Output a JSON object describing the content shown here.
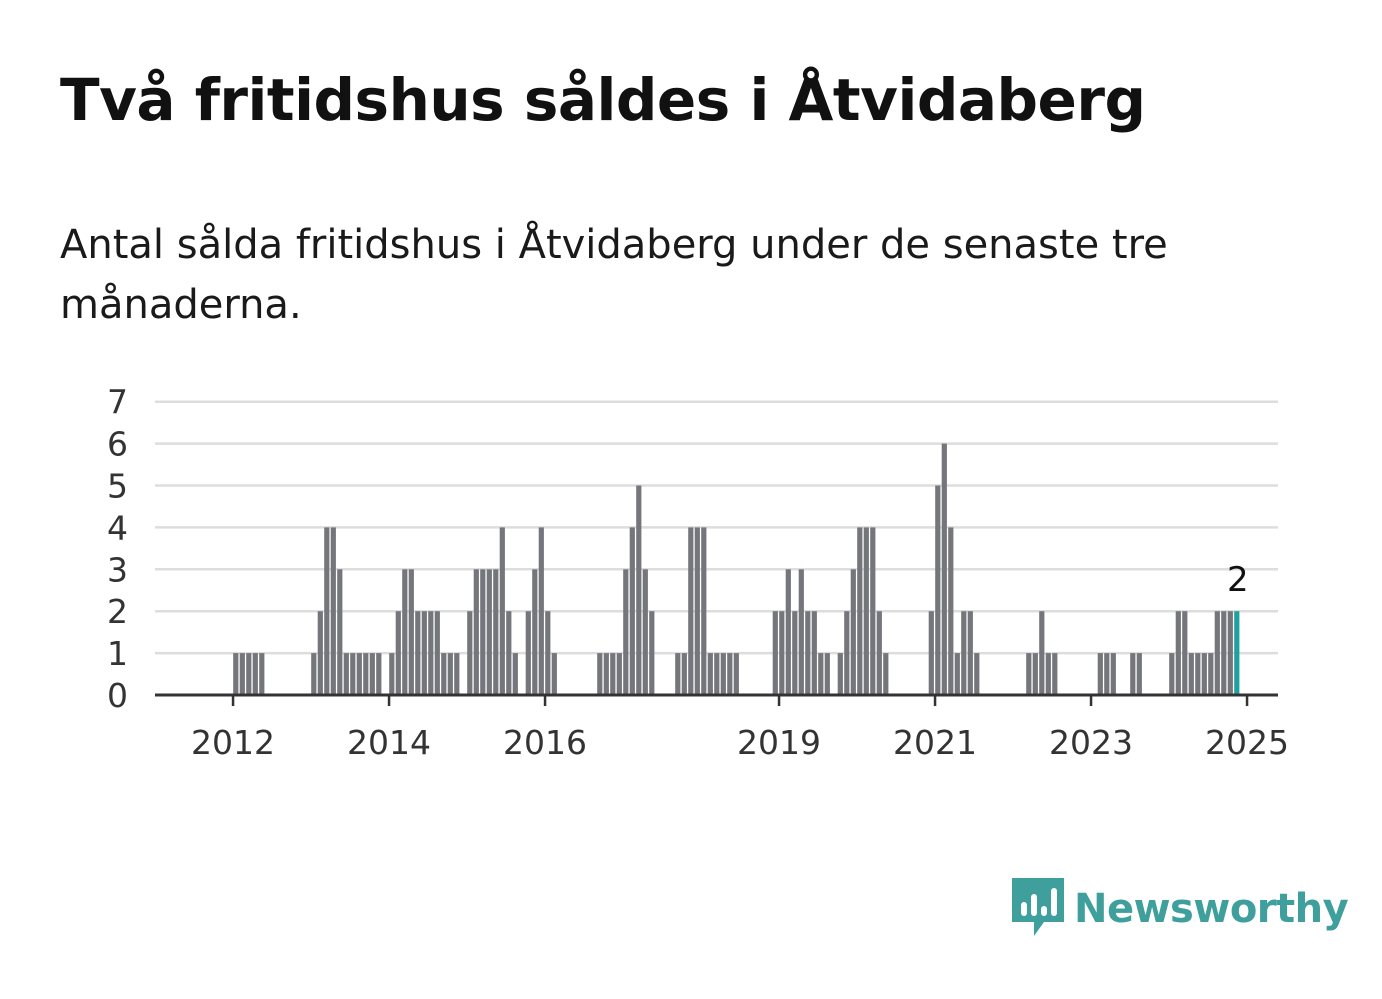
{
  "title": "Två fritidshus såldes i Åtvidaberg",
  "subtitle": "Antal sålda fritidshus i Åtvidaberg under de senaste tre månaderna.",
  "brand": {
    "name": "Newsworthy",
    "color": "#3e9f9c",
    "icon": "newsworthy-chart-bubble-icon"
  },
  "colors": {
    "bar": "#75767b",
    "highlight": "#1fa29f",
    "grid": "#dddddd",
    "axis": "#333333"
  },
  "chart_data": {
    "type": "bar",
    "x_start": "2011-01",
    "interval": "month",
    "y_ticks": [
      0,
      1,
      2,
      3,
      4,
      5,
      6,
      7
    ],
    "x_ticks": [
      "2012",
      "2014",
      "2016",
      "2019",
      "2021",
      "2023",
      "2025"
    ],
    "ylim": [
      0,
      7
    ],
    "grid": true,
    "highlight_last": true,
    "last_label": "2",
    "values": [
      0,
      0,
      0,
      0,
      0,
      0,
      0,
      0,
      0,
      0,
      0,
      0,
      1,
      1,
      1,
      1,
      1,
      0,
      0,
      0,
      0,
      0,
      0,
      0,
      1,
      2,
      4,
      4,
      3,
      1,
      1,
      1,
      1,
      1,
      1,
      0,
      1,
      2,
      3,
      3,
      2,
      2,
      2,
      2,
      1,
      1,
      1,
      0,
      2,
      3,
      3,
      3,
      3,
      4,
      2,
      1,
      0,
      2,
      3,
      4,
      2,
      1,
      0,
      0,
      0,
      0,
      0,
      0,
      1,
      1,
      1,
      1,
      3,
      4,
      5,
      3,
      2,
      0,
      0,
      0,
      1,
      1,
      4,
      4,
      4,
      1,
      1,
      1,
      1,
      1,
      0,
      0,
      0,
      0,
      0,
      2,
      2,
      3,
      2,
      3,
      2,
      2,
      1,
      1,
      0,
      1,
      2,
      3,
      4,
      4,
      4,
      2,
      1,
      0,
      0,
      0,
      0,
      0,
      0,
      2,
      5,
      6,
      4,
      1,
      2,
      2,
      1,
      0,
      0,
      0,
      0,
      0,
      0,
      0,
      1,
      1,
      2,
      1,
      1,
      0,
      0,
      0,
      0,
      0,
      0,
      1,
      1,
      1,
      0,
      0,
      1,
      1,
      0,
      0,
      0,
      0,
      1,
      2,
      2,
      1,
      1,
      1,
      1,
      2,
      2,
      2,
      2
    ]
  }
}
